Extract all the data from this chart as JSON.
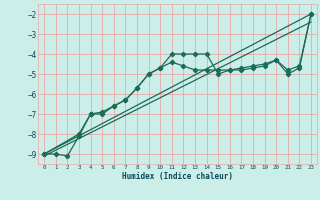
{
  "xlabel": "Humidex (Indice chaleur)",
  "background_color": "#cceee8",
  "grid_color": "#e8a8a8",
  "line_color": "#1a6b5a",
  "xlim": [
    -0.5,
    23.5
  ],
  "ylim": [
    -9.5,
    -1.5
  ],
  "xticks": [
    0,
    1,
    2,
    3,
    4,
    5,
    6,
    7,
    8,
    9,
    10,
    11,
    12,
    13,
    14,
    15,
    16,
    17,
    18,
    19,
    20,
    21,
    22,
    23
  ],
  "yticks": [
    -9,
    -8,
    -7,
    -6,
    -5,
    -4,
    -3,
    -2
  ],
  "line1_x": [
    0,
    1,
    2,
    3,
    4,
    4,
    5,
    6,
    7,
    8,
    9,
    10,
    11,
    12,
    13,
    14,
    15,
    16,
    17,
    18,
    19,
    20,
    21,
    22,
    23
  ],
  "line1_y": [
    -9,
    -9,
    -9.1,
    -8.1,
    -7.0,
    -7.0,
    -6.9,
    -6.6,
    -6.3,
    -5.7,
    -5.0,
    -4.7,
    -4.0,
    -4.0,
    -4.0,
    -4.0,
    -5.0,
    -4.8,
    -4.7,
    -4.6,
    -4.5,
    -4.3,
    -5.0,
    -4.7,
    -2.0
  ],
  "line2_x": [
    0,
    3,
    4,
    5,
    6,
    7,
    8,
    9,
    10,
    11,
    12,
    13,
    14,
    15,
    16,
    17,
    18,
    19,
    20,
    21,
    22,
    23
  ],
  "line2_y": [
    -9,
    -8.0,
    -7.0,
    -7.0,
    -6.6,
    -6.3,
    -5.7,
    -5.0,
    -4.7,
    -4.4,
    -4.6,
    -4.8,
    -4.8,
    -4.8,
    -4.8,
    -4.8,
    -4.7,
    -4.6,
    -4.3,
    -4.8,
    -4.6,
    -2.0
  ],
  "line3_x": [
    0,
    23
  ],
  "line3_y": [
    -9.0,
    -2.0
  ],
  "line4_x": [
    0,
    23
  ],
  "line4_y": [
    -9.1,
    -2.4
  ]
}
